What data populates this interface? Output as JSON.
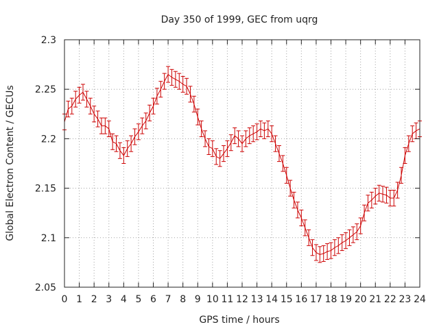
{
  "chart_data": {
    "type": "line",
    "title": "Day 350 of 1999, GEC from uqrg",
    "xlabel": "GPS time / hours",
    "ylabel": "Global Electron Content / GECUs",
    "xlim": [
      0,
      24
    ],
    "ylim": [
      2.05,
      2.3
    ],
    "x_ticks": [
      0,
      1,
      2,
      3,
      4,
      5,
      6,
      7,
      8,
      9,
      10,
      11,
      12,
      13,
      14,
      15,
      16,
      17,
      18,
      19,
      20,
      21,
      22,
      23,
      24
    ],
    "y_ticks": [
      2.05,
      2.1,
      2.15,
      2.2,
      2.25,
      2.3
    ],
    "y_tick_labels": [
      "2.05",
      "2.1",
      "2.15",
      "2.2",
      "2.25",
      "2.3"
    ],
    "grid": true,
    "error_bar": 0.008,
    "series": [
      {
        "name": "GEC",
        "color": "#cc0000",
        "x": [
          0,
          0.25,
          0.5,
          0.75,
          1,
          1.25,
          1.5,
          1.75,
          2,
          2.25,
          2.5,
          2.75,
          3,
          3.25,
          3.5,
          3.75,
          4,
          4.25,
          4.5,
          4.75,
          5,
          5.25,
          5.5,
          5.75,
          6,
          6.25,
          6.5,
          6.75,
          7,
          7.25,
          7.5,
          7.75,
          8,
          8.25,
          8.5,
          8.75,
          9,
          9.25,
          9.5,
          9.75,
          10,
          10.25,
          10.5,
          10.75,
          11,
          11.25,
          11.5,
          11.75,
          12,
          12.25,
          12.5,
          12.75,
          13,
          13.25,
          13.5,
          13.75,
          14,
          14.25,
          14.5,
          14.75,
          15,
          15.25,
          15.5,
          15.75,
          16,
          16.25,
          16.5,
          16.75,
          17,
          17.25,
          17.5,
          17.75,
          18,
          18.25,
          18.5,
          18.75,
          19,
          19.25,
          19.5,
          19.75,
          20,
          20.25,
          20.5,
          20.75,
          21,
          21.25,
          21.5,
          21.75,
          22,
          22.25,
          22.5,
          22.75,
          23,
          23.25,
          23.5,
          23.75,
          24
        ],
        "y": [
          2.217,
          2.23,
          2.233,
          2.24,
          2.244,
          2.247,
          2.24,
          2.233,
          2.225,
          2.22,
          2.213,
          2.213,
          2.21,
          2.197,
          2.195,
          2.188,
          2.183,
          2.19,
          2.195,
          2.202,
          2.207,
          2.213,
          2.218,
          2.226,
          2.233,
          2.243,
          2.25,
          2.258,
          2.265,
          2.262,
          2.26,
          2.258,
          2.255,
          2.253,
          2.245,
          2.235,
          2.222,
          2.21,
          2.2,
          2.192,
          2.19,
          2.182,
          2.18,
          2.185,
          2.19,
          2.196,
          2.203,
          2.2,
          2.195,
          2.2,
          2.203,
          2.205,
          2.207,
          2.21,
          2.208,
          2.21,
          2.205,
          2.195,
          2.185,
          2.175,
          2.163,
          2.15,
          2.138,
          2.128,
          2.12,
          2.11,
          2.1,
          2.09,
          2.085,
          2.083,
          2.084,
          2.086,
          2.087,
          2.09,
          2.092,
          2.095,
          2.097,
          2.1,
          2.103,
          2.106,
          2.112,
          2.125,
          2.135,
          2.138,
          2.142,
          2.145,
          2.144,
          2.143,
          2.14,
          2.14,
          2.148,
          2.163,
          2.183,
          2.195,
          2.205,
          2.208,
          2.21
        ]
      }
    ]
  }
}
